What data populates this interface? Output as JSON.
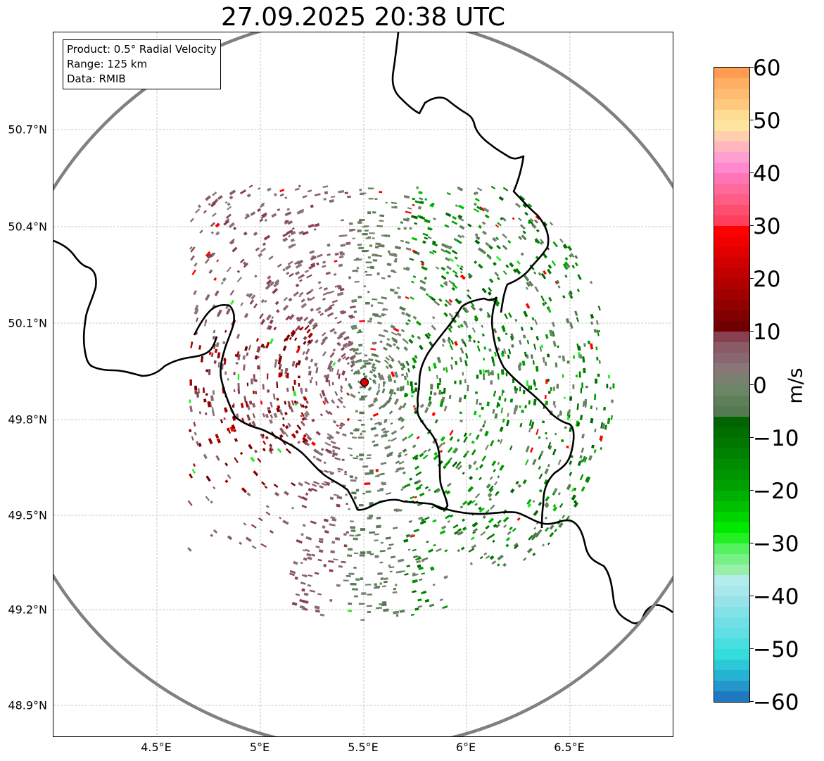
{
  "title": "27.09.2025 20:38 UTC",
  "info": {
    "product": "Product: 0.5° Radial Velocity",
    "range": "Range: 125 km",
    "source": "Data: RMIB"
  },
  "axes": {
    "lat_labels": [
      "50.7°N",
      "50.4°N",
      "50.1°N",
      "49.8°N",
      "49.5°N",
      "49.2°N",
      "48.9°N"
    ],
    "lon_labels": [
      "4.5°E",
      "5°E",
      "5.5°E",
      "6°E",
      "6.5°E"
    ]
  },
  "colorbar": {
    "unit": "m/s",
    "ticks": [
      "60",
      "50",
      "40",
      "30",
      "20",
      "10",
      "0",
      "−10",
      "−20",
      "−30",
      "−40",
      "−50",
      "−60"
    ],
    "colors": [
      "#ff9c52",
      "#ffae62",
      "#ffbb72",
      "#ffc87e",
      "#ffdc94",
      "#ffe6a0",
      "#ffcfb0",
      "#ffb6be",
      "#ff9ed0",
      "#ff88ce",
      "#ff74b4",
      "#ff6a9c",
      "#ff5c86",
      "#ff4f70",
      "#ff3f5c",
      "#ff0000",
      "#f00000",
      "#e00000",
      "#d00000",
      "#c00000",
      "#b00000",
      "#a00000",
      "#900000",
      "#800000",
      "#700000",
      "#884050",
      "#8a5a66",
      "#8a6670",
      "#8a7676",
      "#7a8070",
      "#6a8666",
      "#5e7f5a",
      "#557a52",
      "#006400",
      "#006e00",
      "#007800",
      "#008200",
      "#008c00",
      "#009600",
      "#00a000",
      "#00b000",
      "#00c000",
      "#00d400",
      "#00ea00",
      "#22f022",
      "#55f260",
      "#78f088",
      "#98f0a8",
      "#b4ecee",
      "#a8e8ec",
      "#96e4ea",
      "#82e2e8",
      "#70e0e6",
      "#5ee0e4",
      "#48dee0",
      "#34dcdc",
      "#2cc8d8",
      "#26b2d2",
      "#2496cc",
      "#1f78c0"
    ],
    "range_min": -60,
    "range_max": 60
  },
  "map": {
    "radar_site_color": "#e00000",
    "range_ring_color": "#808080"
  }
}
